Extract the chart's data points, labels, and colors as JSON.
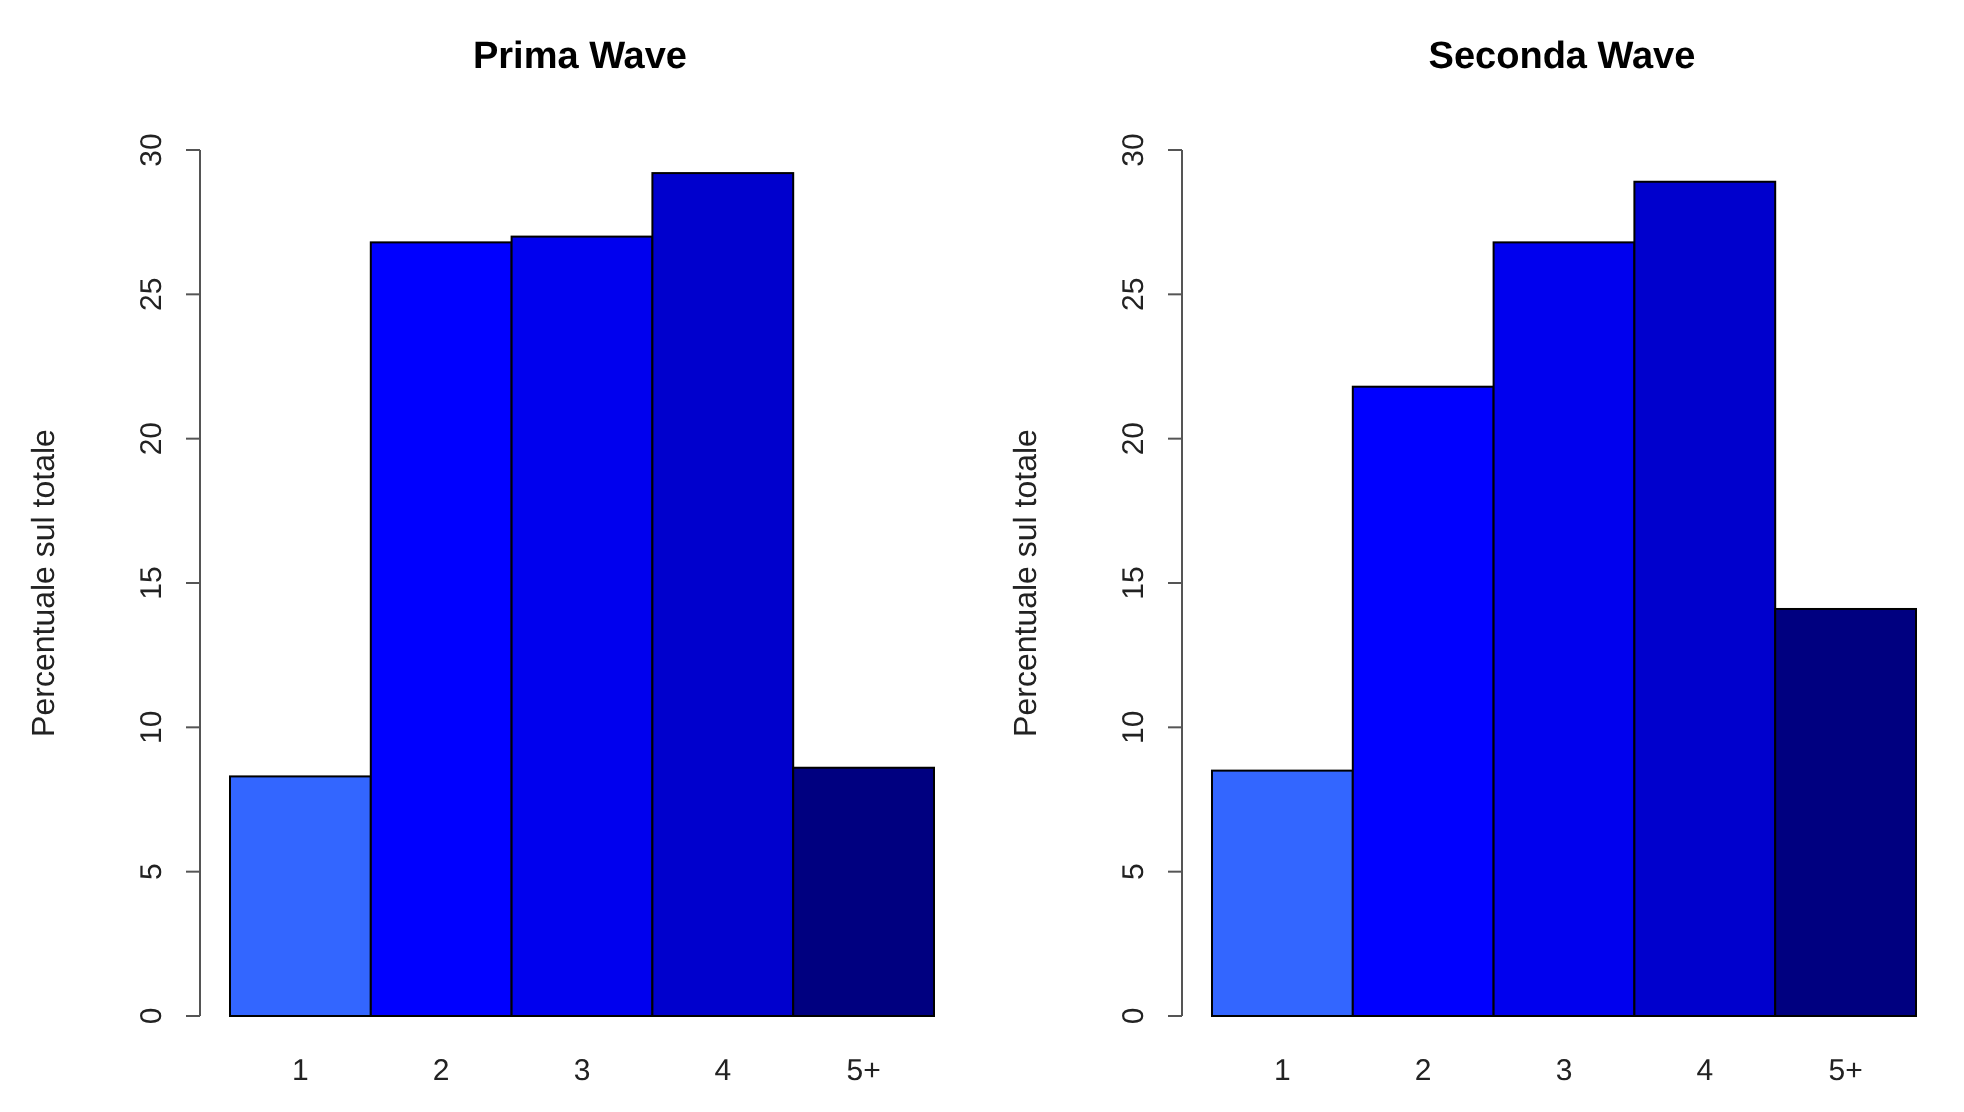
{
  "chart_data": [
    {
      "type": "bar",
      "title": "Prima Wave",
      "ylabel": "Percentuale sul totale",
      "categories": [
        "1",
        "2",
        "3",
        "4",
        "5+"
      ],
      "values": [
        8.3,
        26.8,
        27.0,
        29.2,
        8.6
      ],
      "colors": [
        "#3366ff",
        "#0000ff",
        "#0000ee",
        "#0000cd",
        "#000080"
      ],
      "ylim": [
        0,
        30
      ],
      "yticks": [
        0,
        5,
        10,
        15,
        20,
        25,
        30
      ]
    },
    {
      "type": "bar",
      "title": "Seconda Wave",
      "ylabel": "Percentuale sul totale",
      "categories": [
        "1",
        "2",
        "3",
        "4",
        "5+"
      ],
      "values": [
        8.5,
        21.8,
        26.8,
        28.9,
        14.1
      ],
      "colors": [
        "#3366ff",
        "#0000ff",
        "#0000ee",
        "#0000cd",
        "#000080"
      ],
      "ylim": [
        0,
        30
      ],
      "yticks": [
        0,
        5,
        10,
        15,
        20,
        25,
        30
      ]
    }
  ]
}
